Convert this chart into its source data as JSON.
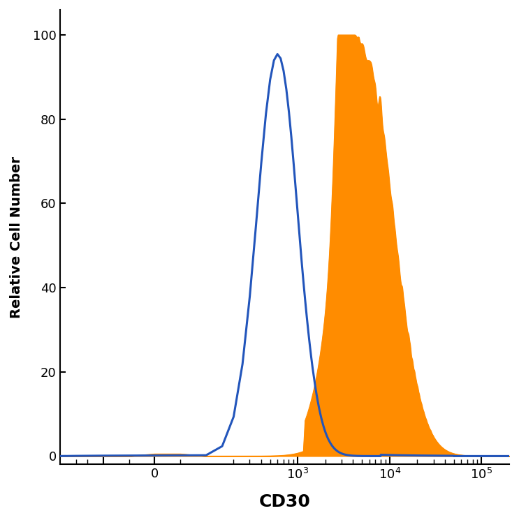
{
  "title": "",
  "xlabel": "CD30",
  "ylabel": "Relative Cell Number",
  "xlabel_fontsize": 18,
  "ylabel_fontsize": 14,
  "xlabel_fontweight": "bold",
  "ylabel_fontweight": "bold",
  "tick_labelsize": 13,
  "ylim": [
    -2,
    106
  ],
  "yticks": [
    0,
    20,
    40,
    60,
    80,
    100
  ],
  "blue_color": "#2255bb",
  "orange_color": "#FF8C00",
  "blue_linewidth": 2.2,
  "figsize": [
    7.43,
    7.45
  ],
  "dpi": 100
}
